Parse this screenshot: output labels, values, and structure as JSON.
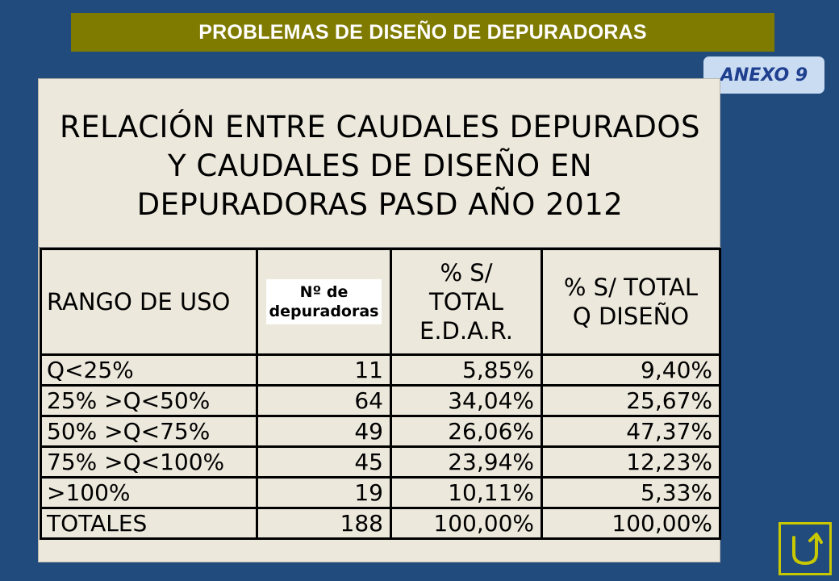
{
  "header": {
    "title": "PROBLEMAS DE DISEÑO DE DEPURADORAS"
  },
  "badge": {
    "label": "ANEXO 9"
  },
  "panel": {
    "title_lines": [
      "RELACIÓN ENTRE CAUDALES DEPURADOS",
      "Y CAUDALES DE DISEÑO EN",
      "DEPURADORAS PASD AÑO 2012"
    ]
  },
  "table": {
    "headers": {
      "range": "RANGO DE USO",
      "count_lines": [
        "Nº de",
        "depuradoras"
      ],
      "pct_edar_lines": [
        "% S/",
        "TOTAL",
        "E.D.A.R."
      ],
      "pct_q_lines": [
        "% S/ TOTAL",
        "Q DISEÑO"
      ]
    },
    "rows": [
      [
        "Q<25%",
        "11",
        "5,85%",
        "9,40%"
      ],
      [
        "25% >Q<50%",
        "64",
        "34,04%",
        "25,67%"
      ],
      [
        "50% >Q<75%",
        "49",
        "26,06%",
        "47,37%"
      ],
      [
        "75% >Q<100%",
        "45",
        "23,94%",
        "12,23%"
      ],
      [
        ">100%",
        "19",
        "10,11%",
        "5,33%"
      ],
      [
        "TOTALES",
        "188",
        "100,00%",
        "100,00%"
      ]
    ]
  },
  "nav": {
    "icon": "return-arrow-icon",
    "color": "#c8c800"
  },
  "colors": {
    "background": "#214a7d",
    "header_bar": "#7f7a00",
    "badge_bg": "#c9dcf2",
    "badge_text": "#1f3f8f",
    "panel_bg": "#ece8dc"
  }
}
